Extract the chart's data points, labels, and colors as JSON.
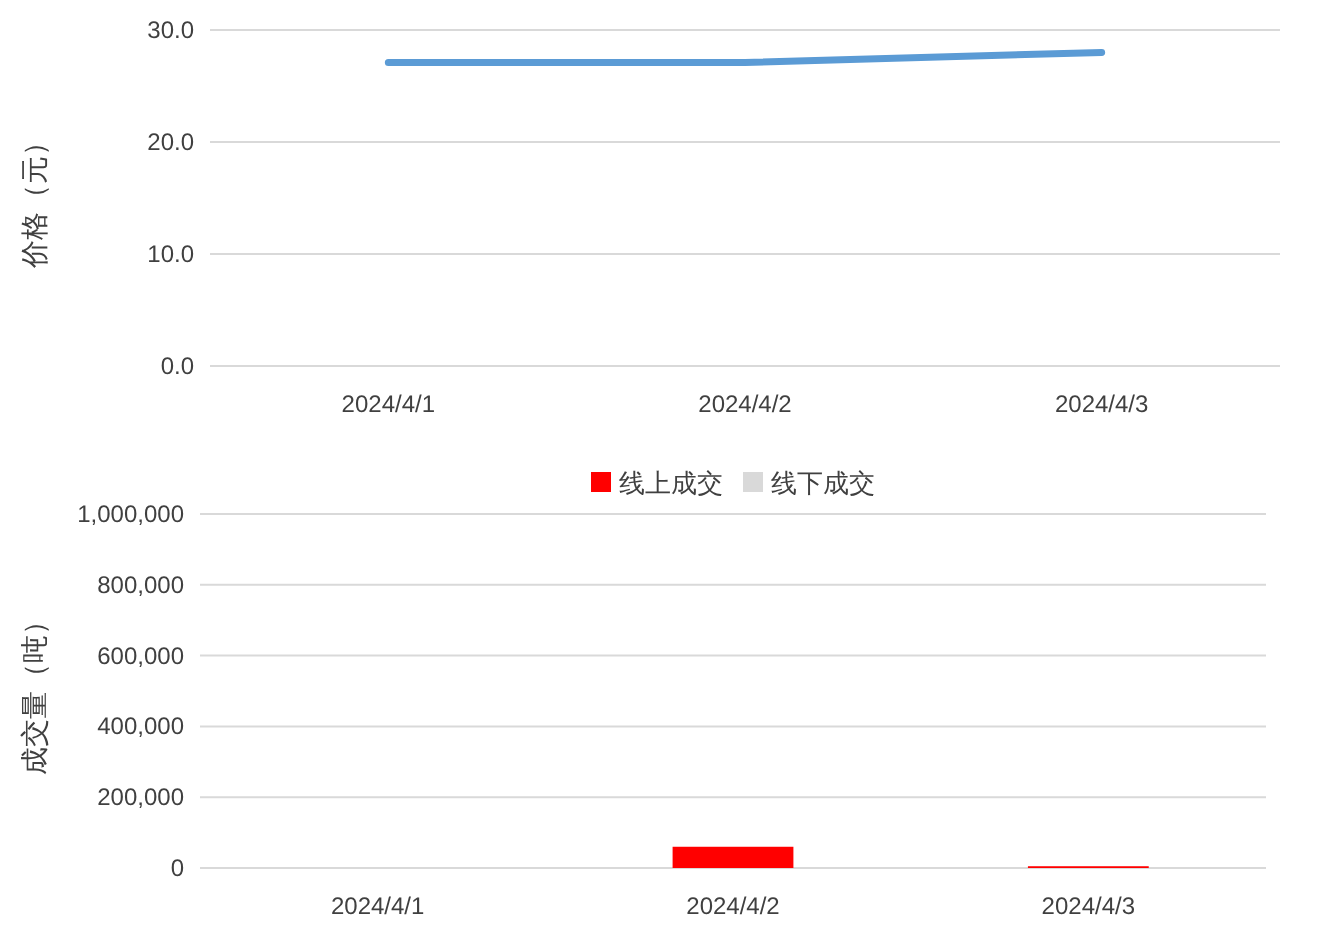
{
  "chart_data": [
    {
      "type": "line",
      "categories": [
        "2024/4/1",
        "2024/4/2",
        "2024/4/3"
      ],
      "ylabel": "价格（元）",
      "series": [
        {
          "color": "#5b9bd5",
          "values": [
            27.1,
            27.1,
            28.0
          ]
        }
      ],
      "ylim": [
        0,
        30
      ],
      "yticks": [
        {
          "value": 0,
          "label": "0.0"
        },
        {
          "value": 10,
          "label": "10.0"
        },
        {
          "value": 20,
          "label": "20.0"
        },
        {
          "value": 30,
          "label": "30.0"
        }
      ],
      "grid": "y"
    },
    {
      "type": "bar",
      "stacked": true,
      "categories": [
        "2024/4/1",
        "2024/4/2",
        "2024/4/3"
      ],
      "ylabel": "成交量（吨）",
      "series": [
        {
          "name": "线上成交",
          "color": "#ff0000",
          "values": [
            0,
            60000,
            5000
          ]
        },
        {
          "name": "线下成交",
          "color": "#d9d9d9",
          "values": [
            0,
            0,
            0
          ]
        }
      ],
      "ylim": [
        0,
        1000000
      ],
      "yticks": [
        {
          "value": 0,
          "label": "0"
        },
        {
          "value": 200000,
          "label": "200,000"
        },
        {
          "value": 400000,
          "label": "400,000"
        },
        {
          "value": 600000,
          "label": "600,000"
        },
        {
          "value": 800000,
          "label": "800,000"
        },
        {
          "value": 1000000,
          "label": "1,000,000"
        }
      ],
      "grid": "y",
      "legend": "top"
    }
  ]
}
